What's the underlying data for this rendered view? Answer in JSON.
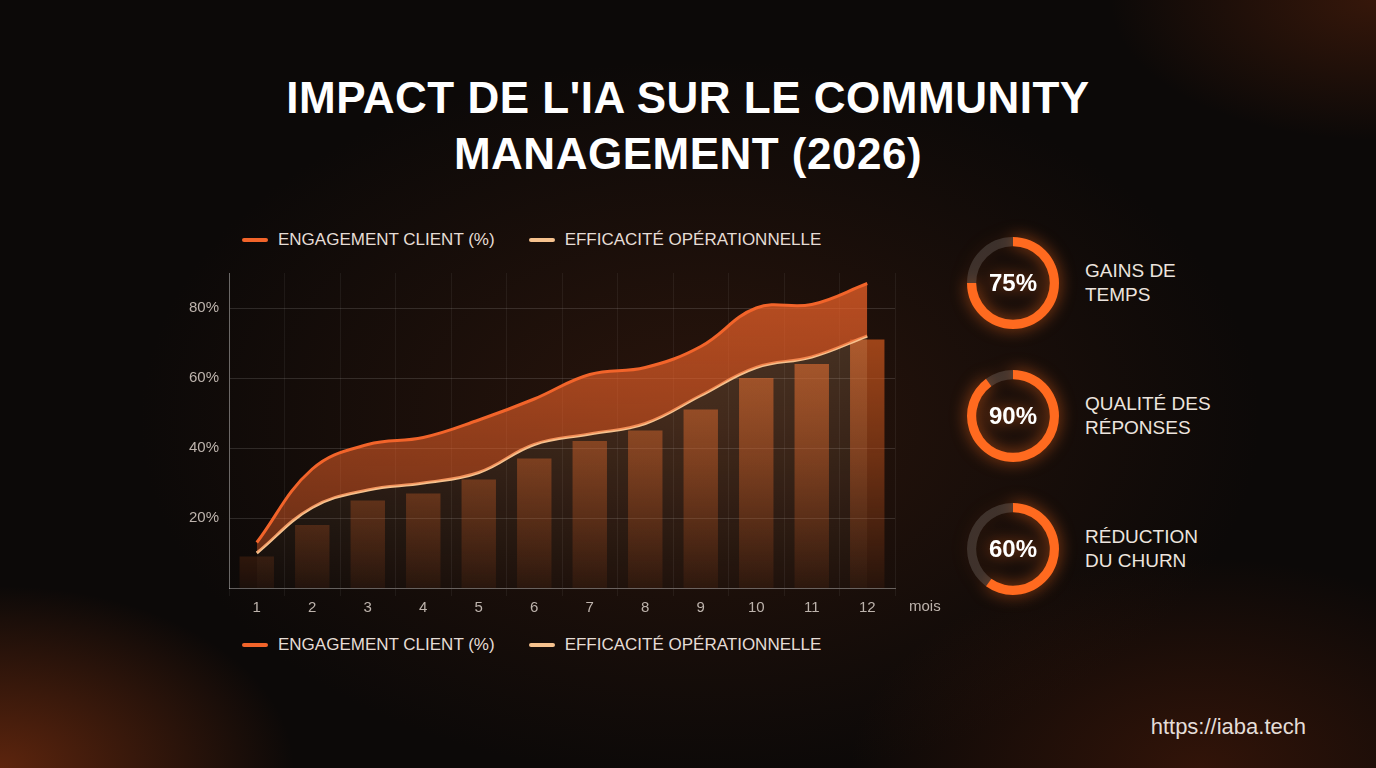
{
  "chart_data": [
    {
      "type": "line",
      "title": "IMPACT DE L'IA SUR LE COMMUNITY MANAGEMENT (2026)",
      "x_label": "mois",
      "categories": [
        "1",
        "2",
        "3",
        "4",
        "5",
        "6",
        "7",
        "8",
        "9",
        "10",
        "11",
        "12"
      ],
      "series": [
        {
          "name": "ENGAGEMENT CLIENT (%)",
          "color": "#f2642a",
          "values": [
            13,
            34,
            41,
            43,
            48,
            54,
            61,
            63,
            69,
            80,
            81,
            87
          ]
        },
        {
          "name": "EFFICACITÉ OPÉRATIONNELLE",
          "color": "#f6c28e",
          "values": [
            10,
            23,
            28,
            30,
            33,
            41,
            44,
            47,
            55,
            63,
            66,
            72
          ]
        },
        {
          "type": "bar",
          "color": "#c9561e",
          "values": [
            9,
            18,
            25,
            27,
            31,
            37,
            42,
            45,
            51,
            60,
            64,
            71
          ]
        }
      ],
      "ylim": [
        0,
        90
      ],
      "yticks": [
        {
          "value": 20,
          "label": "20%"
        },
        {
          "value": 40,
          "label": "40%"
        },
        {
          "value": 60,
          "label": "60%"
        },
        {
          "value": 80,
          "label": "80%"
        }
      ],
      "grid": true,
      "legend": "top"
    },
    {
      "type": "doughnut",
      "title": "GAINS DE TEMPS",
      "values": [
        75
      ],
      "value_labels": [
        "75%"
      ],
      "ylim": [
        0,
        100
      ],
      "color": "#ff6a1f",
      "data_labels": true
    },
    {
      "type": "doughnut",
      "title": "QUALITÉ DES RÉPONSES",
      "values": [
        90
      ],
      "value_labels": [
        "90%"
      ],
      "ylim": [
        0,
        100
      ],
      "color": "#ff6a1f",
      "data_labels": true
    },
    {
      "type": "doughnut",
      "title": "RÉDUCTION DU CHURN",
      "values": [
        60
      ],
      "value_labels": [
        "60%"
      ],
      "ylim": [
        0,
        100
      ],
      "color": "#ff6a1f",
      "data_labels": true
    }
  ],
  "footer": "https://iaba.tech"
}
